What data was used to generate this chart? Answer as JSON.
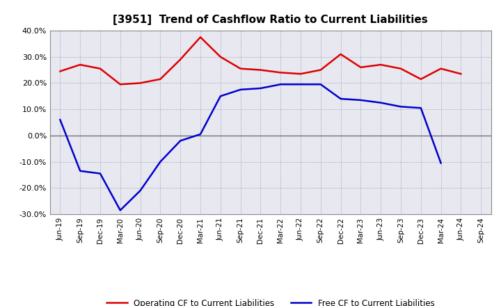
{
  "title": "[3951]  Trend of Cashflow Ratio to Current Liabilities",
  "x_labels": [
    "Jun-19",
    "Sep-19",
    "Dec-19",
    "Mar-20",
    "Jun-20",
    "Sep-20",
    "Dec-20",
    "Mar-21",
    "Jun-21",
    "Sep-21",
    "Dec-21",
    "Mar-22",
    "Jun-22",
    "Sep-22",
    "Dec-22",
    "Mar-23",
    "Jun-23",
    "Sep-23",
    "Dec-23",
    "Mar-24",
    "Jun-24",
    "Sep-24"
  ],
  "operating_cf": [
    24.5,
    27.0,
    25.5,
    19.5,
    20.0,
    21.5,
    29.0,
    37.5,
    30.0,
    25.5,
    25.0,
    24.0,
    23.5,
    25.0,
    31.0,
    26.0,
    27.0,
    25.5,
    21.5,
    25.5,
    23.5,
    null
  ],
  "free_cf": [
    6.0,
    -13.5,
    -14.5,
    -28.5,
    -21.0,
    -10.0,
    -2.0,
    0.5,
    15.0,
    17.5,
    18.0,
    19.5,
    19.5,
    19.5,
    14.0,
    13.5,
    12.5,
    11.0,
    10.5,
    -10.5,
    null,
    null
  ],
  "ylim": [
    -30.0,
    40.0
  ],
  "yticks": [
    -30.0,
    -20.0,
    -10.0,
    0.0,
    10.0,
    20.0,
    30.0,
    40.0
  ],
  "operating_color": "#dd0000",
  "free_color": "#0000cc",
  "grid_color": "#9999bb",
  "zero_line_color": "#666666",
  "plot_bg_color": "#e8e8f0",
  "fig_bg_color": "#ffffff",
  "legend_op": "Operating CF to Current Liabilities",
  "legend_free": "Free CF to Current Liabilities"
}
